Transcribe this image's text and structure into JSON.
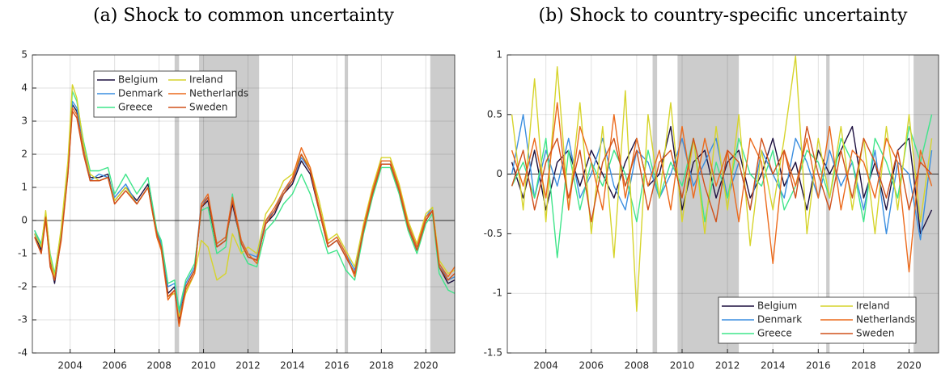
{
  "chart_data": [
    {
      "type": "line",
      "title": "(a) Shock to common uncertainty",
      "x": [
        2002.4,
        2002.7,
        2002.9,
        2003.1,
        2003.3,
        2003.6,
        2003.9,
        2004.1,
        2004.3,
        2004.6,
        2004.9,
        2005.3,
        2005.7,
        2006.0,
        2006.5,
        2007.0,
        2007.5,
        2007.9,
        2008.1,
        2008.4,
        2008.7,
        2008.9,
        2009.2,
        2009.6,
        2009.9,
        2010.2,
        2010.6,
        2011.0,
        2011.3,
        2011.7,
        2012.0,
        2012.4,
        2012.8,
        2013.2,
        2013.6,
        2014.0,
        2014.4,
        2014.8,
        2015.2,
        2015.6,
        2016.0,
        2016.4,
        2016.8,
        2017.2,
        2017.6,
        2018.0,
        2018.4,
        2018.8,
        2019.2,
        2019.6,
        2020.0,
        2020.3,
        2020.6,
        2021.0,
        2021.3
      ],
      "series": [
        {
          "name": "Belgium",
          "color": "#1c0f3f",
          "values": [
            -0.4,
            -0.9,
            0.1,
            -1.2,
            -1.9,
            -0.5,
            1.5,
            3.5,
            3.3,
            2.2,
            1.3,
            1.3,
            1.4,
            0.6,
            1.0,
            0.6,
            1.1,
            -0.4,
            -0.8,
            -2.2,
            -2.0,
            -3.0,
            -2.0,
            -1.5,
            0.4,
            0.6,
            -0.8,
            -0.6,
            0.5,
            -0.7,
            -1.1,
            -1.2,
            -0.1,
            0.2,
            0.8,
            1.1,
            1.8,
            1.4,
            0.3,
            -0.8,
            -0.6,
            -1.1,
            -1.6,
            -0.3,
            0.8,
            1.7,
            1.7,
            0.9,
            -0.2,
            -0.9,
            0.0,
            0.3,
            -1.4,
            -1.9,
            -1.8
          ]
        },
        {
          "name": "Denmark",
          "color": "#3a8ee0",
          "values": [
            -0.3,
            -0.8,
            0.2,
            -1.1,
            -1.7,
            -0.4,
            1.6,
            3.6,
            3.4,
            2.3,
            1.2,
            1.4,
            1.3,
            0.7,
            1.1,
            0.5,
            1.0,
            -0.3,
            -0.7,
            -2.0,
            -1.9,
            -2.8,
            -1.9,
            -1.4,
            0.5,
            0.7,
            -0.7,
            -0.5,
            0.6,
            -0.6,
            -1.0,
            -1.1,
            0.0,
            0.3,
            0.9,
            1.2,
            1.9,
            1.5,
            0.4,
            -0.7,
            -0.5,
            -1.0,
            -1.5,
            -0.2,
            0.9,
            1.8,
            1.8,
            1.0,
            -0.1,
            -0.8,
            0.1,
            0.4,
            -1.3,
            -1.8,
            -1.7
          ]
        },
        {
          "name": "Greece",
          "color": "#3fe58a",
          "values": [
            -0.3,
            -0.7,
            0.2,
            -1.0,
            -1.6,
            -0.3,
            1.7,
            3.9,
            3.6,
            2.4,
            1.5,
            1.5,
            1.6,
            0.8,
            1.4,
            0.8,
            1.3,
            -0.3,
            -0.6,
            -1.9,
            -1.8,
            -2.7,
            -1.8,
            -1.3,
            0.3,
            0.4,
            -1.0,
            -0.8,
            0.8,
            -0.9,
            -1.3,
            -1.4,
            -0.3,
            0.0,
            0.5,
            0.8,
            1.4,
            0.8,
            -0.1,
            -1.0,
            -0.9,
            -1.5,
            -1.8,
            -0.4,
            0.7,
            1.6,
            1.6,
            0.8,
            -0.3,
            -1.0,
            -0.1,
            0.2,
            -1.6,
            -2.1,
            -2.2
          ]
        },
        {
          "name": "Ireland",
          "color": "#d6d42c",
          "values": [
            -0.4,
            -0.8,
            0.3,
            -1.1,
            -1.7,
            -0.2,
            1.8,
            4.1,
            3.7,
            2.3,
            1.4,
            1.2,
            1.3,
            0.6,
            1.0,
            0.5,
            1.0,
            -0.5,
            -0.9,
            -2.3,
            -2.2,
            -2.9,
            -2.2,
            -1.6,
            -0.6,
            -0.8,
            -1.8,
            -1.6,
            -0.4,
            -1.0,
            -0.8,
            -1.0,
            0.2,
            0.6,
            1.2,
            1.4,
            2.0,
            1.6,
            0.6,
            -0.6,
            -0.4,
            -0.9,
            -1.4,
            -0.1,
            1.0,
            1.9,
            1.9,
            1.1,
            0.0,
            -0.7,
            0.2,
            0.4,
            -1.2,
            -1.6,
            -1.5
          ]
        },
        {
          "name": "Netherlands",
          "color": "#ec6a1c",
          "values": [
            -0.5,
            -1.0,
            0.0,
            -1.3,
            -1.8,
            -0.6,
            1.4,
            3.4,
            3.2,
            2.1,
            1.2,
            1.2,
            1.3,
            0.5,
            0.9,
            0.5,
            1.0,
            -0.5,
            -0.9,
            -2.4,
            -2.1,
            -3.2,
            -2.1,
            -1.6,
            0.5,
            0.8,
            -0.7,
            -0.5,
            0.7,
            -0.6,
            -1.0,
            -1.3,
            0.0,
            0.4,
            0.9,
            1.3,
            2.2,
            1.6,
            0.4,
            -0.7,
            -0.5,
            -1.0,
            -1.7,
            -0.2,
            0.9,
            1.8,
            1.8,
            1.0,
            -0.1,
            -0.8,
            0.1,
            0.3,
            -1.3,
            -1.7,
            -1.4
          ]
        },
        {
          "name": "Sweden",
          "color": "#d0501a",
          "values": [
            -0.5,
            -1.0,
            0.1,
            -1.4,
            -1.8,
            -0.5,
            1.4,
            3.3,
            3.1,
            2.0,
            1.2,
            1.2,
            1.3,
            0.5,
            0.9,
            0.5,
            1.0,
            -0.4,
            -0.8,
            -2.3,
            -2.1,
            -3.1,
            -2.0,
            -1.5,
            0.4,
            0.7,
            -0.8,
            -0.6,
            0.6,
            -0.7,
            -1.1,
            -1.2,
            -0.1,
            0.3,
            0.8,
            1.2,
            2.0,
            1.5,
            0.3,
            -0.8,
            -0.6,
            -1.1,
            -1.6,
            -0.3,
            0.8,
            1.7,
            1.7,
            0.9,
            -0.2,
            -0.9,
            0.0,
            0.3,
            -1.4,
            -1.8,
            -1.6
          ]
        }
      ],
      "xlim": [
        2002.3,
        2021.3
      ],
      "xticks": [
        2004,
        2006,
        2008,
        2010,
        2012,
        2014,
        2016,
        2018,
        2020
      ],
      "ylim": [
        -4,
        5
      ],
      "yticks": [
        -4,
        -3,
        -2,
        -1,
        0,
        1,
        2,
        3,
        4,
        5
      ],
      "shaded_periods": [
        [
          2008.7,
          2008.9
        ],
        [
          2009.8,
          2012.5
        ],
        [
          2016.35,
          2016.5
        ],
        [
          2020.2,
          2021.3
        ]
      ],
      "reference_line": 0,
      "grid": true,
      "legend": "upper center"
    },
    {
      "type": "line",
      "title": "(b) Shock to country-specific uncertainty",
      "x": [
        2002.5,
        2003.0,
        2003.5,
        2004.0,
        2004.5,
        2005.0,
        2005.5,
        2006.0,
        2006.5,
        2007.0,
        2007.5,
        2008.0,
        2008.5,
        2009.0,
        2009.5,
        2010.0,
        2010.5,
        2011.0,
        2011.5,
        2012.0,
        2012.5,
        2013.0,
        2013.5,
        2014.0,
        2014.5,
        2015.0,
        2015.5,
        2016.0,
        2016.5,
        2017.0,
        2017.5,
        2018.0,
        2018.5,
        2019.0,
        2019.5,
        2020.0,
        2020.5,
        2021.0
      ],
      "series": [
        {
          "name": "Belgium",
          "color": "#1c0f3f",
          "values": [
            0.1,
            -0.2,
            0.2,
            -0.3,
            0.1,
            0.2,
            -0.1,
            0.2,
            0.0,
            -0.2,
            0.1,
            0.3,
            -0.1,
            0.0,
            0.4,
            -0.3,
            0.1,
            0.2,
            -0.2,
            0.1,
            0.2,
            -0.2,
            0.0,
            0.3,
            -0.1,
            0.1,
            -0.3,
            0.2,
            0.0,
            0.2,
            0.4,
            -0.2,
            0.1,
            -0.3,
            0.2,
            0.3,
            -0.5,
            -0.3
          ]
        },
        {
          "name": "Denmark",
          "color": "#3a8ee0",
          "values": [
            0.0,
            0.5,
            -0.2,
            0.2,
            -0.1,
            0.3,
            -0.2,
            0.0,
            0.3,
            -0.1,
            -0.3,
            0.2,
            0.1,
            -0.2,
            0.0,
            0.3,
            -0.1,
            0.1,
            0.3,
            -0.2,
            0.1,
            -0.3,
            0.2,
            0.0,
            -0.2,
            0.3,
            0.1,
            -0.2,
            0.2,
            -0.1,
            0.1,
            -0.3,
            0.2,
            -0.5,
            0.1,
            0.0,
            -0.55,
            0.2
          ]
        },
        {
          "name": "Greece",
          "color": "#3fe58a",
          "values": [
            -0.1,
            0.1,
            -0.2,
            0.3,
            -0.7,
            0.2,
            -0.3,
            0.1,
            -0.1,
            0.2,
            0.0,
            -0.4,
            0.2,
            -0.2,
            0.1,
            -0.1,
            0.3,
            -0.4,
            0.1,
            -0.2,
            0.3,
            0.0,
            -0.1,
            0.2,
            -0.3,
            -0.1,
            0.2,
            0.1,
            -0.2,
            0.3,
            0.1,
            -0.4,
            0.3,
            0.1,
            -0.2,
            0.4,
            0.1,
            0.5
          ]
        },
        {
          "name": "Ireland",
          "color": "#d6d42c",
          "values": [
            0.5,
            -0.3,
            0.8,
            -0.4,
            0.9,
            -0.3,
            0.6,
            -0.5,
            0.4,
            -0.7,
            0.7,
            -1.15,
            0.5,
            -0.2,
            0.6,
            -0.4,
            0.3,
            -0.5,
            0.4,
            -0.3,
            0.5,
            -0.6,
            0.2,
            -0.3,
            0.3,
            0.99,
            -0.5,
            0.3,
            -0.2,
            0.4,
            -0.3,
            0.3,
            -0.5,
            0.4,
            -0.3,
            0.5,
            -0.4,
            0.3
          ]
        },
        {
          "name": "Netherlands",
          "color": "#ec6a1c",
          "values": [
            0.2,
            -0.1,
            0.3,
            -0.2,
            0.6,
            -0.3,
            0.4,
            0.1,
            -0.3,
            0.5,
            -0.2,
            0.3,
            -0.1,
            0.2,
            -0.3,
            0.4,
            -0.2,
            0.3,
            -0.1,
            0.2,
            -0.4,
            0.3,
            0.1,
            -0.75,
            0.2,
            -0.1,
            0.3,
            -0.2,
            0.4,
            -0.3,
            0.2,
            0.1,
            -0.2,
            0.3,
            0.1,
            -0.82,
            0.2,
            -0.1
          ]
        },
        {
          "name": "Sweden",
          "color": "#d0501a",
          "values": [
            -0.1,
            0.2,
            -0.3,
            0.1,
            0.3,
            -0.2,
            0.2,
            -0.4,
            0.1,
            0.3,
            -0.1,
            0.2,
            -0.3,
            0.1,
            0.2,
            -0.2,
            0.3,
            -0.1,
            -0.4,
            0.2,
            0.1,
            -0.3,
            0.3,
            0.0,
            0.2,
            -0.2,
            0.4,
            0.0,
            -0.3,
            0.2,
            -0.2,
            0.3,
            0.1,
            -0.2,
            0.2,
            -0.3,
            0.1,
            0.0
          ]
        }
      ],
      "xlim": [
        2002.3,
        2021.3
      ],
      "xticks": [
        2004,
        2006,
        2008,
        2010,
        2012,
        2014,
        2016,
        2018,
        2020
      ],
      "ylim": [
        -1.5,
        1
      ],
      "yticks": [
        -1.5,
        -1,
        -0.5,
        0,
        0.5,
        1
      ],
      "shaded_periods": [
        [
          2008.7,
          2008.9
        ],
        [
          2009.8,
          2012.5
        ],
        [
          2016.35,
          2016.5
        ],
        [
          2020.2,
          2021.3
        ]
      ],
      "reference_line": 0,
      "grid": true,
      "legend": "lower right"
    }
  ]
}
